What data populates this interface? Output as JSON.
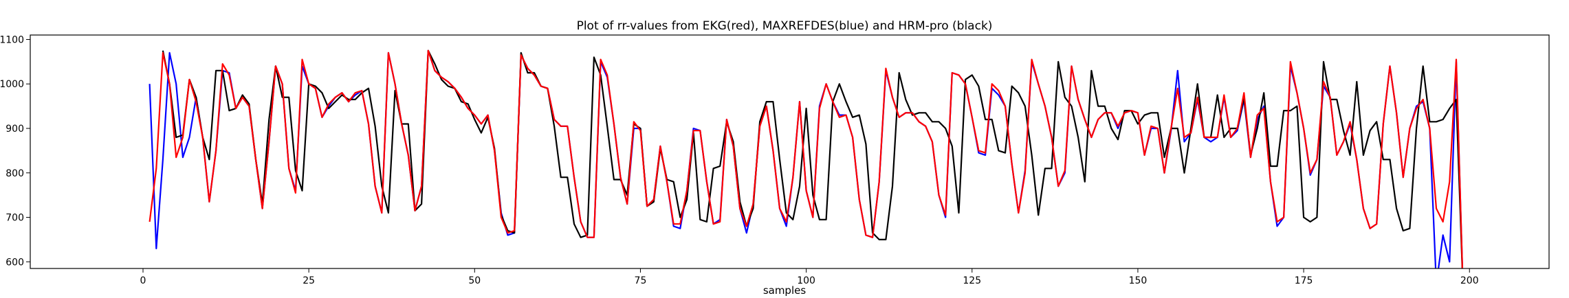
{
  "chart_data": {
    "type": "line",
    "title": "Plot of rr-values from EKG(red), MAXREFDES(blue) and HRM-pro (black)",
    "xlabel": "samples",
    "ylabel": "",
    "xlim": [
      -17,
      212
    ],
    "ylim": [
      585,
      1110
    ],
    "xticks": [
      0,
      25,
      50,
      75,
      100,
      125,
      150,
      175,
      200
    ],
    "yticks": [
      600,
      700,
      800,
      900,
      1000,
      1100
    ],
    "grid": false,
    "series": [
      {
        "color": "#0000ff",
        "x_start": 1,
        "values": [
          1000,
          630,
          830,
          1070,
          1000,
          835,
          880,
          970,
          880,
          735,
          850,
          1030,
          1025,
          945,
          970,
          950,
          830,
          720,
          870,
          1040,
          1000,
          810,
          760,
          1040,
          1000,
          990,
          925,
          950,
          970,
          980,
          960,
          975,
          985,
          910,
          770,
          710,
          1070,
          1000,
          910,
          840,
          715,
          770,
          1075,
          1030,
          1015,
          1005,
          990,
          970,
          945,
          930,
          910,
          930,
          850,
          710,
          660,
          665,
          1065,
          1035,
          1020,
          995,
          990,
          920,
          905,
          905,
          790,
          690,
          655,
          655,
          1050,
          1015,
          910,
          790,
          730,
          900,
          900,
          725,
          740,
          860,
          780,
          680,
          675,
          760,
          900,
          895,
          780,
          685,
          695,
          920,
          860,
          720,
          665,
          730,
          905,
          950,
          850,
          720,
          680,
          790,
          960,
          760,
          700,
          950,
          1000,
          960,
          930,
          930,
          880,
          740,
          660,
          655,
          780,
          1030,
          970,
          925,
          935,
          935,
          915,
          905,
          870,
          750,
          700,
          1025,
          1020,
          1000,
          925,
          845,
          840,
          990,
          975,
          950,
          820,
          710,
          805,
          1050,
          1000,
          950,
          880,
          770,
          800,
          1040,
          965,
          920,
          880,
          920,
          935,
          935,
          900,
          935,
          940,
          935,
          840,
          900,
          900,
          800,
          895,
          1030,
          870,
          890,
          965,
          880,
          870,
          880,
          970,
          880,
          895,
          965,
          835,
          920,
          950,
          780,
          680,
          700,
          1040,
          980,
          900,
          795,
          830,
          995,
          970,
          840,
          870,
          910,
          830,
          720,
          675,
          685,
          910,
          1040,
          935,
          790,
          900,
          950,
          960,
          900,
          550,
          660,
          600,
          1050,
          550
        ]
      },
      {
        "color": "#000000",
        "x_start": 3,
        "values": [
          1075,
          1000,
          880,
          885,
          1010,
          970,
          880,
          830,
          1030,
          1030,
          940,
          945,
          975,
          955,
          830,
          730,
          920,
          1040,
          970,
          970,
          805,
          760,
          1000,
          995,
          980,
          945,
          960,
          975,
          965,
          965,
          980,
          990,
          905,
          770,
          710,
          985,
          910,
          910,
          715,
          730,
          1075,
          1045,
          1010,
          995,
          990,
          960,
          955,
          920,
          890,
          925,
          855,
          705,
          670,
          665,
          1070,
          1025,
          1025,
          995,
          990,
          905,
          790,
          790,
          685,
          655,
          660,
          1060,
          1020,
          905,
          785,
          785,
          750,
          910,
          900,
          725,
          735,
          855,
          785,
          780,
          700,
          740,
          890,
          695,
          690,
          810,
          815,
          915,
          870,
          735,
          680,
          720,
          915,
          960,
          960,
          830,
          710,
          695,
          770,
          945,
          750,
          695,
          695,
          960,
          1000,
          960,
          925,
          930,
          865,
          665,
          650,
          650,
          770,
          1025,
          965,
          930,
          935,
          935,
          915,
          915,
          900,
          860,
          710,
          1010,
          1020,
          995,
          920,
          920,
          850,
          845,
          995,
          980,
          950,
          840,
          705,
          810,
          810,
          1050,
          970,
          950,
          880,
          780,
          1030,
          950,
          950,
          900,
          875,
          940,
          940,
          910,
          930,
          935,
          935,
          835,
          900,
          900,
          800,
          900,
          1000,
          880,
          880,
          975,
          880,
          900,
          900,
          970,
          840,
          900,
          980,
          815,
          815,
          940,
          940,
          950,
          700,
          690,
          700,
          1050,
          965,
          965,
          895,
          840,
          1005,
          840,
          895,
          915,
          830,
          830,
          720,
          670,
          675,
          900,
          1040,
          915,
          915,
          920,
          945,
          965,
          550
        ]
      },
      {
        "color": "#ff0000",
        "x_start": 1,
        "values": [
          690,
          810,
          1070,
          1000,
          835,
          880,
          1010,
          960,
          880,
          735,
          850,
          1045,
          1020,
          945,
          970,
          950,
          830,
          720,
          870,
          1040,
          1000,
          810,
          755,
          1055,
          1000,
          990,
          925,
          955,
          970,
          980,
          960,
          980,
          985,
          910,
          770,
          710,
          1070,
          1000,
          910,
          840,
          715,
          770,
          1075,
          1030,
          1015,
          1005,
          990,
          970,
          945,
          930,
          910,
          930,
          850,
          700,
          665,
          670,
          1065,
          1035,
          1020,
          995,
          990,
          920,
          905,
          905,
          790,
          690,
          655,
          655,
          1055,
          1020,
          910,
          790,
          730,
          915,
          895,
          725,
          740,
          860,
          780,
          685,
          685,
          760,
          895,
          895,
          780,
          685,
          690,
          920,
          860,
          720,
          680,
          730,
          905,
          950,
          850,
          720,
          690,
          790,
          960,
          760,
          700,
          945,
          1000,
          960,
          925,
          930,
          880,
          740,
          660,
          655,
          780,
          1035,
          970,
          925,
          935,
          935,
          915,
          905,
          870,
          750,
          705,
          1025,
          1020,
          1000,
          925,
          850,
          845,
          1000,
          985,
          950,
          820,
          710,
          800,
          1055,
          1000,
          950,
          880,
          770,
          805,
          1040,
          965,
          920,
          880,
          920,
          935,
          935,
          905,
          935,
          940,
          935,
          840,
          905,
          900,
          800,
          900,
          990,
          880,
          890,
          970,
          880,
          880,
          880,
          975,
          880,
          900,
          980,
          835,
          930,
          945,
          780,
          690,
          700,
          1050,
          980,
          900,
          800,
          830,
          1005,
          970,
          840,
          870,
          915,
          830,
          720,
          675,
          685,
          910,
          1040,
          935,
          790,
          900,
          945,
          965,
          900,
          720,
          690,
          780,
          1055,
          550
        ]
      }
    ]
  }
}
